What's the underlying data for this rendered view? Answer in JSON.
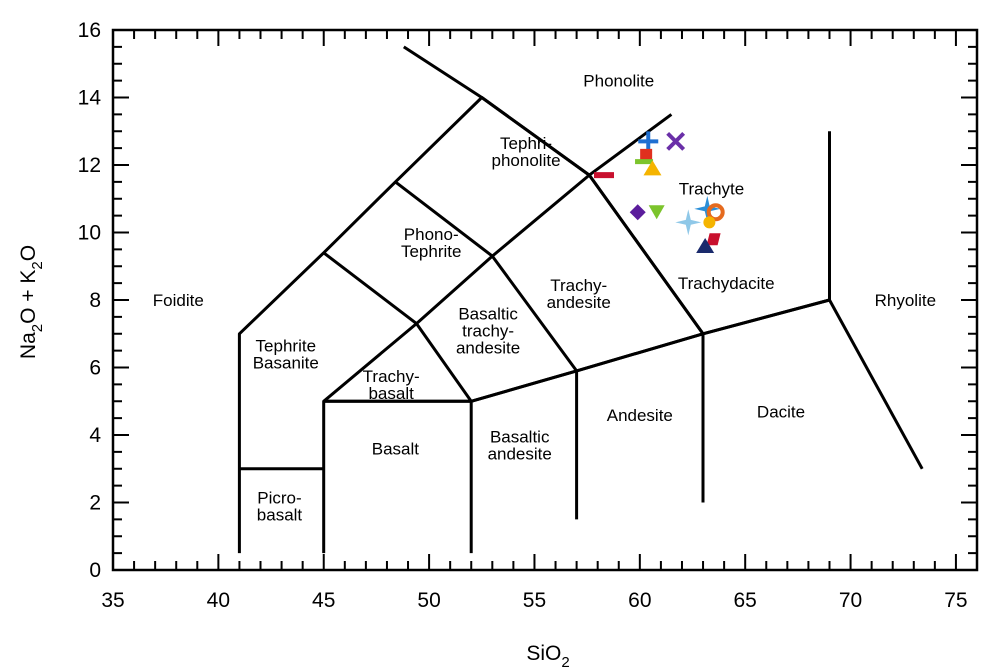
{
  "chart_data": {
    "type": "scatter",
    "title": "",
    "xlabel": {
      "main": "SiO",
      "sub": "2"
    },
    "ylabel": {
      "parts": [
        [
          "Na",
          false
        ],
        [
          "2",
          true
        ],
        [
          "O + K",
          false
        ],
        [
          "2",
          true
        ],
        [
          "O",
          false
        ]
      ]
    },
    "xlim": [
      35,
      76
    ],
    "ylim": [
      0,
      16
    ],
    "x_ticks": [
      35,
      40,
      45,
      50,
      55,
      60,
      65,
      70,
      75
    ],
    "y_ticks": [
      0,
      2,
      4,
      6,
      8,
      10,
      12,
      14,
      16
    ],
    "grid": false,
    "tas_boundaries": [
      [
        [
          41,
          0.5
        ],
        [
          41,
          7
        ],
        [
          45,
          9.4
        ],
        [
          48.4,
          11.5
        ],
        [
          52.5,
          14
        ],
        [
          57.6,
          11.7
        ],
        [
          63,
          7
        ],
        [
          69,
          8
        ]
      ],
      [
        [
          45,
          0.5
        ],
        [
          45,
          5
        ],
        [
          49.4,
          7.3
        ],
        [
          53,
          9.3
        ],
        [
          57.6,
          11.7
        ],
        [
          61.5,
          13.5
        ]
      ],
      [
        [
          52,
          0.5
        ],
        [
          52,
          5
        ],
        [
          57,
          5.9
        ],
        [
          63,
          7
        ]
      ],
      [
        [
          41,
          3
        ],
        [
          45,
          3
        ]
      ],
      [
        [
          45,
          5
        ],
        [
          52,
          5
        ]
      ],
      [
        [
          45,
          5
        ],
        [
          52,
          5
        ],
        [
          57,
          5.9
        ],
        [
          63,
          7
        ],
        [
          69,
          8
        ]
      ],
      [
        [
          52,
          5
        ],
        [
          49.4,
          7.3
        ],
        [
          45,
          9.4
        ]
      ],
      [
        [
          57,
          5.9
        ],
        [
          53,
          9.3
        ],
        [
          48.4,
          11.5
        ]
      ],
      [
        [
          63,
          7
        ],
        [
          57.6,
          11.7
        ],
        [
          52.5,
          14
        ],
        [
          48.8,
          15.5
        ]
      ],
      [
        [
          57,
          1.5
        ],
        [
          57,
          5.9
        ]
      ],
      [
        [
          63,
          2
        ],
        [
          63,
          7
        ]
      ],
      [
        [
          69,
          8
        ],
        [
          69,
          13
        ]
      ],
      [
        [
          69,
          8
        ],
        [
          73.4,
          3
        ]
      ]
    ],
    "fields": [
      {
        "name": "Foidite",
        "lines": [
          "Foidite"
        ],
        "x": 38.1,
        "y": 8.0
      },
      {
        "name": "Phonolite",
        "lines": [
          "Phonolite"
        ],
        "x": 59.0,
        "y": 14.5
      },
      {
        "name": "Tephri-phonolite",
        "lines": [
          "Tephri-",
          "phonolite"
        ],
        "x": 54.6,
        "y": 12.4
      },
      {
        "name": "Phono-Tephrite",
        "lines": [
          "Phono-",
          "Tephrite"
        ],
        "x": 50.1,
        "y": 9.7
      },
      {
        "name": "Tephrite Basanite",
        "lines": [
          "Tephrite",
          "Basanite"
        ],
        "x": 43.2,
        "y": 6.4
      },
      {
        "name": "Trachy-basalt",
        "lines": [
          "Trachy-",
          "basalt"
        ],
        "x": 48.2,
        "y": 5.5
      },
      {
        "name": "Basaltic trachy-andesite",
        "lines": [
          "Basaltic",
          "trachy-",
          "andesite"
        ],
        "x": 52.8,
        "y": 7.1
      },
      {
        "name": "Trachy-andesite",
        "lines": [
          "Trachy-",
          "andesite"
        ],
        "x": 57.1,
        "y": 8.2
      },
      {
        "name": "Trachyte",
        "lines": [
          "Trachyte"
        ],
        "x": 63.4,
        "y": 11.3
      },
      {
        "name": "Trachydacite",
        "lines": [
          "Trachydacite"
        ],
        "x": 64.1,
        "y": 8.5
      },
      {
        "name": "Rhyolite",
        "lines": [
          "Rhyolite"
        ],
        "x": 72.6,
        "y": 8.0
      },
      {
        "name": "Dacite",
        "lines": [
          "Dacite"
        ],
        "x": 66.7,
        "y": 4.7
      },
      {
        "name": "Andesite",
        "lines": [
          "Andesite"
        ],
        "x": 60.0,
        "y": 4.6
      },
      {
        "name": "Basaltic andesite",
        "lines": [
          "Basaltic",
          "andesite"
        ],
        "x": 54.3,
        "y": 3.7
      },
      {
        "name": "Basalt",
        "lines": [
          "Basalt"
        ],
        "x": 48.4,
        "y": 3.6
      },
      {
        "name": "Picro-basalt",
        "lines": [
          "Picro-",
          "basalt"
        ],
        "x": 42.9,
        "y": 1.9
      }
    ],
    "points": [
      {
        "x": 60.4,
        "y": 12.7,
        "marker": "plus",
        "color": "#1f6fd1"
      },
      {
        "x": 61.7,
        "y": 12.7,
        "marker": "cross",
        "color": "#6a2fa8"
      },
      {
        "x": 60.3,
        "y": 12.3,
        "marker": "square",
        "color": "#e0301e"
      },
      {
        "x": 60.2,
        "y": 12.1,
        "marker": "hline",
        "color": "#7cc42c"
      },
      {
        "x": 60.6,
        "y": 11.9,
        "marker": "triangle",
        "color": "#f5b400"
      },
      {
        "x": 58.3,
        "y": 11.7,
        "marker": "dash",
        "color": "#c8102e"
      },
      {
        "x": 59.9,
        "y": 10.6,
        "marker": "diamond",
        "color": "#5b1d9c"
      },
      {
        "x": 60.8,
        "y": 10.6,
        "marker": "triangle-down",
        "color": "#7cc42c"
      },
      {
        "x": 63.2,
        "y": 10.7,
        "marker": "star",
        "color": "#2a8fd8"
      },
      {
        "x": 62.3,
        "y": 10.3,
        "marker": "star",
        "color": "#8fc8e8"
      },
      {
        "x": 63.6,
        "y": 10.6,
        "marker": "circle-open",
        "color": "#e56a1e"
      },
      {
        "x": 63.3,
        "y": 10.3,
        "marker": "circle",
        "color": "#f5b400"
      },
      {
        "x": 63.5,
        "y": 9.8,
        "marker": "parallelogram",
        "color": "#c8102e"
      },
      {
        "x": 63.1,
        "y": 9.6,
        "marker": "triangle",
        "color": "#1a2a6c"
      }
    ]
  }
}
